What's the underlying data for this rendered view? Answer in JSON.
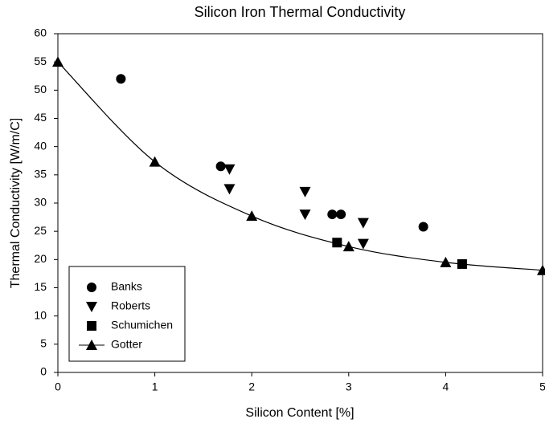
{
  "chart_data": {
    "type": "scatter",
    "title": "Silicon Iron Thermal Conductivity",
    "xlabel": "Silicon Content [%]",
    "ylabel": "Thermal Conductivity [W/m/C]",
    "xlim": [
      0,
      5
    ],
    "xticks": [
      0,
      1,
      2,
      3,
      4,
      5
    ],
    "ylim": [
      0,
      60
    ],
    "yticks": [
      0,
      5,
      10,
      15,
      20,
      25,
      30,
      35,
      40,
      45,
      50,
      55,
      60
    ],
    "legend": "lower left",
    "series": [
      {
        "name": "Banks",
        "color": "#000000",
        "marker": "circle",
        "x": [
          0.65,
          1.68,
          2.83,
          2.92,
          3.77
        ],
        "values": [
          52,
          36.5,
          28,
          28,
          25.8
        ]
      },
      {
        "name": "Roberts",
        "color": "#000000",
        "marker": "triangle-down",
        "x": [
          1.77,
          1.77,
          2.55,
          2.55,
          3.15,
          3.15
        ],
        "values": [
          36,
          32.5,
          32,
          28,
          26.5,
          22.8
        ]
      },
      {
        "name": "Schumichen",
        "color": "#000000",
        "marker": "square",
        "x": [
          2.88,
          4.17
        ],
        "values": [
          23,
          19.2
        ]
      },
      {
        "name": "Gotter",
        "color": "#000000",
        "marker": "triangle-up",
        "line": true,
        "x": [
          0,
          1,
          2,
          3,
          4,
          5
        ],
        "values": [
          55,
          37.3,
          27.7,
          22.3,
          19.5,
          18.1
        ]
      }
    ]
  }
}
